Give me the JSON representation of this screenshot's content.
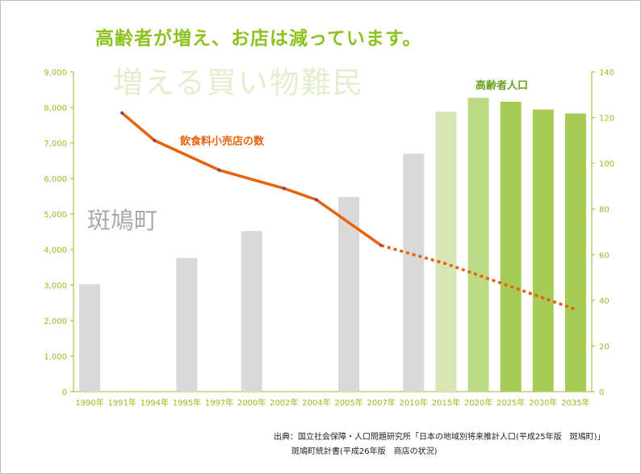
{
  "title": "高齢者が増え、お店は減っています。",
  "subtitle": "増える買い物難民",
  "town_label": "斑鳩町",
  "source_line1": "出典：国立社会保障・人口問題研究所「日本の地域別将来推計人口(平成25年版　斑鳩町)」",
  "source_line2": "斑鳩町統計書(平成26年版　商店の状況)",
  "colors": {
    "axis_green": "#8dc21f",
    "bar_gray": "#d9d9d9",
    "bar_light_green": "#d7e6b4",
    "bar_mid_green": "#bcd985",
    "bar_green": "#a6cc55",
    "line_orange": "#e8620c"
  },
  "chart_data": {
    "type": "bar+line",
    "categories": [
      "1990年",
      "1991年",
      "1994年",
      "1995年",
      "1997年",
      "2000年",
      "2002年",
      "2004年",
      "2005年",
      "2007年",
      "2010年",
      "2015年",
      "2020年",
      "2025年",
      "2030年",
      "2035年"
    ],
    "y_left": {
      "ticks": [
        "0",
        "1,000",
        "2,000",
        "3,000",
        "4,000",
        "5,000",
        "6,000",
        "7,000",
        "8,000",
        "9,000"
      ],
      "ylim": [
        0,
        9000
      ]
    },
    "y_right": {
      "ticks": [
        "0",
        "20",
        "40",
        "60",
        "80",
        "100",
        "120",
        "140"
      ],
      "ylim": [
        0,
        140
      ]
    },
    "series": [
      {
        "name": "高齢者人口",
        "type": "bar",
        "axis": "left",
        "values": [
          3020,
          null,
          null,
          3760,
          null,
          4520,
          null,
          null,
          5480,
          null,
          6700,
          7880,
          8270,
          8160,
          7940,
          7830
        ],
        "colors": [
          "#d9d9d9",
          null,
          null,
          "#d9d9d9",
          null,
          "#d9d9d9",
          null,
          null,
          "#d9d9d9",
          null,
          "#d9d9d9",
          "#d7e6b4",
          "#bcd985",
          "#a6cc55",
          "#a6cc55",
          "#a6cc55"
        ]
      },
      {
        "name": "飲食料小売店の数",
        "type": "line",
        "axis": "right",
        "color": "#e8620c",
        "values": [
          null,
          122,
          110,
          null,
          97,
          null,
          89,
          84,
          null,
          64,
          null,
          null,
          null,
          null,
          null,
          null
        ],
        "projection": [
          null,
          null,
          null,
          null,
          null,
          null,
          null,
          null,
          null,
          64,
          60,
          56,
          51,
          46,
          41,
          36
        ]
      }
    ]
  }
}
